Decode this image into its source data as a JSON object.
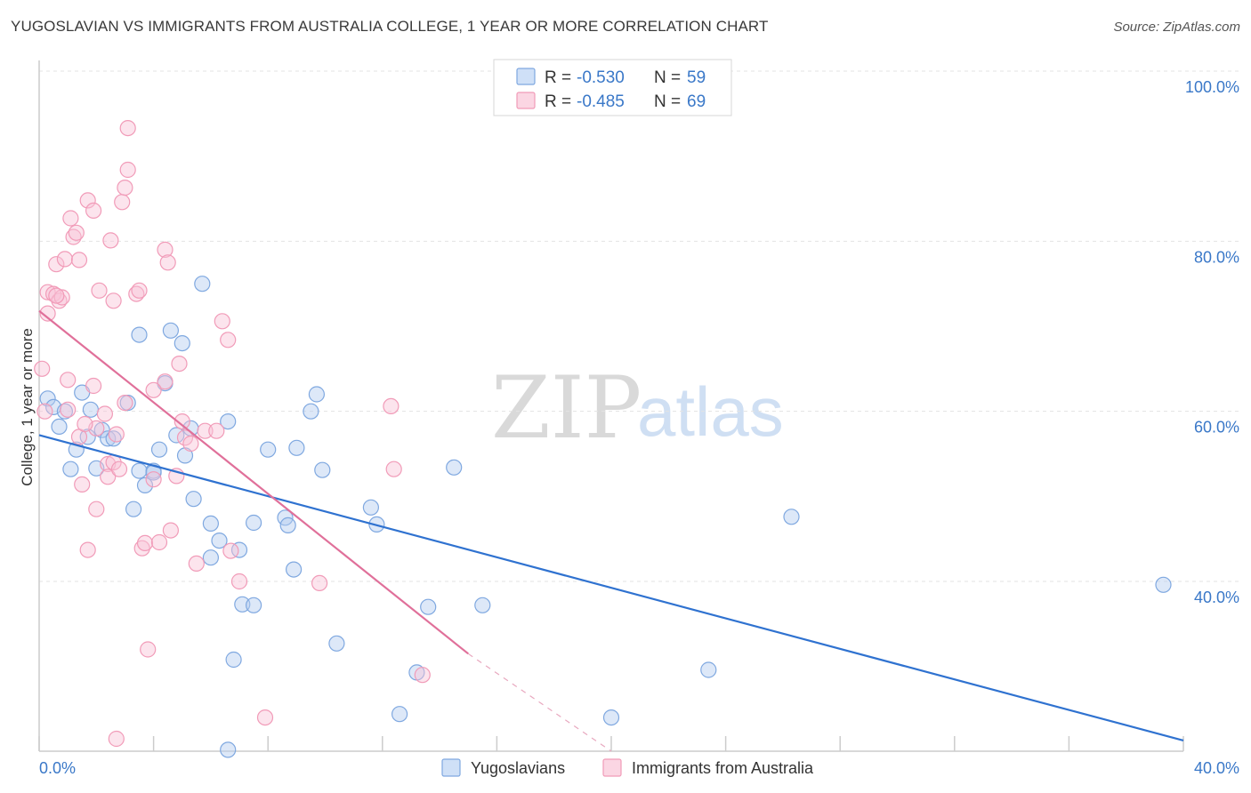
{
  "header": {
    "title": "YUGOSLAVIAN VS IMMIGRANTS FROM AUSTRALIA COLLEGE, 1 YEAR OR MORE CORRELATION CHART",
    "source": "Source: ZipAtlas.com"
  },
  "watermark": {
    "zip": "ZIP",
    "atlas": "atlas"
  },
  "legend_top": {
    "rows": [
      {
        "r_label": "R = ",
        "r_value": "-0.530",
        "n_label": "N = ",
        "n_value": "59",
        "color": "#7fa8e0"
      },
      {
        "r_label": "R = ",
        "r_value": "-0.485",
        "n_label": "N = ",
        "n_value": "69",
        "color": "#f19bb8"
      }
    ]
  },
  "legend_bottom": {
    "items": [
      {
        "label": "Yugoslavians",
        "color": "#7fa8e0"
      },
      {
        "label": "Immigrants from Australia",
        "color": "#f19bb8"
      }
    ]
  },
  "chart_data": {
    "type": "scatter",
    "title": "YUGOSLAVIAN VS IMMIGRANTS FROM AUSTRALIA COLLEGE, 1 YEAR OR MORE CORRELATION CHART",
    "xlabel": "",
    "ylabel": "College, 1 year or more",
    "xlim": [
      0,
      40
    ],
    "ylim": [
      20,
      102
    ],
    "x_tick_labels": [
      "0.0%",
      "40.0%"
    ],
    "y_ticks": [
      40,
      60,
      80,
      100
    ],
    "y_tick_labels": [
      "40.0%",
      "60.0%",
      "80.0%",
      "100.0%"
    ],
    "grid": true,
    "legend": "top-center",
    "series": [
      {
        "name": "Yugoslavians",
        "color": "#7fa8e0",
        "line_color": "#2f72d0",
        "trend": {
          "x0": 0.0,
          "y0": 57.2,
          "x1": 40.0,
          "y1": 21.3
        },
        "points": [
          [
            0.3,
            61.5
          ],
          [
            0.5,
            60.5
          ],
          [
            0.7,
            58.2
          ],
          [
            0.9,
            60.0
          ],
          [
            1.1,
            53.2
          ],
          [
            1.3,
            55.5
          ],
          [
            1.5,
            62.2
          ],
          [
            1.7,
            57.0
          ],
          [
            1.8,
            60.2
          ],
          [
            2.2,
            57.8
          ],
          [
            2.4,
            56.8
          ],
          [
            2.6,
            56.8
          ],
          [
            3.1,
            61.0
          ],
          [
            3.3,
            48.5
          ],
          [
            3.5,
            69.0
          ],
          [
            3.5,
            53.0
          ],
          [
            3.7,
            51.3
          ],
          [
            4.0,
            53.0
          ],
          [
            4.2,
            55.5
          ],
          [
            4.4,
            63.3
          ],
          [
            4.6,
            69.5
          ],
          [
            4.8,
            57.2
          ],
          [
            5.0,
            68.0
          ],
          [
            5.1,
            54.8
          ],
          [
            5.3,
            58.0
          ],
          [
            5.4,
            49.7
          ],
          [
            5.7,
            75.0
          ],
          [
            6.0,
            46.8
          ],
          [
            6.0,
            42.8
          ],
          [
            6.3,
            44.8
          ],
          [
            6.6,
            58.8
          ],
          [
            6.8,
            30.8
          ],
          [
            7.0,
            43.7
          ],
          [
            7.1,
            37.3
          ],
          [
            7.5,
            37.2
          ],
          [
            7.5,
            46.9
          ],
          [
            8.0,
            55.5
          ],
          [
            8.6,
            47.5
          ],
          [
            8.7,
            46.6
          ],
          [
            8.9,
            41.4
          ],
          [
            9.0,
            55.7
          ],
          [
            9.5,
            60.0
          ],
          [
            9.7,
            62.0
          ],
          [
            9.9,
            53.1
          ],
          [
            10.4,
            32.7
          ],
          [
            11.6,
            48.7
          ],
          [
            11.8,
            46.7
          ],
          [
            12.6,
            24.4
          ],
          [
            13.2,
            29.3
          ],
          [
            13.6,
            37.0
          ],
          [
            14.5,
            53.4
          ],
          [
            15.5,
            37.2
          ],
          [
            20.0,
            24.0
          ],
          [
            23.4,
            29.6
          ],
          [
            26.3,
            47.6
          ],
          [
            39.3,
            39.6
          ],
          [
            6.6,
            20.2
          ],
          [
            2.0,
            53.3
          ],
          [
            4.0,
            52.8
          ]
        ]
      },
      {
        "name": "Immigrants from Australia",
        "color": "#f19bb8",
        "line_color": "#e0709a",
        "trend": {
          "x0": 0.0,
          "y0": 71.8,
          "x1": 15.0,
          "y1": 31.5
        },
        "trend_ext": {
          "x0": 15.0,
          "y0": 31.5,
          "x1": 20.0,
          "y1": 18.0
        },
        "points": [
          [
            0.1,
            65.0
          ],
          [
            0.2,
            60.0
          ],
          [
            0.3,
            71.5
          ],
          [
            0.3,
            74.0
          ],
          [
            0.5,
            73.8
          ],
          [
            0.6,
            77.3
          ],
          [
            0.7,
            73.0
          ],
          [
            0.8,
            73.4
          ],
          [
            0.9,
            77.9
          ],
          [
            1.0,
            63.7
          ],
          [
            1.1,
            82.7
          ],
          [
            1.2,
            80.5
          ],
          [
            1.3,
            81.0
          ],
          [
            1.4,
            77.8
          ],
          [
            1.5,
            51.4
          ],
          [
            1.7,
            43.7
          ],
          [
            1.7,
            84.8
          ],
          [
            1.9,
            83.6
          ],
          [
            1.9,
            63.0
          ],
          [
            2.0,
            48.5
          ],
          [
            2.1,
            74.2
          ],
          [
            2.3,
            59.7
          ],
          [
            2.4,
            53.8
          ],
          [
            2.4,
            52.3
          ],
          [
            2.5,
            80.1
          ],
          [
            2.6,
            73.0
          ],
          [
            2.6,
            54.0
          ],
          [
            2.7,
            57.3
          ],
          [
            2.7,
            21.5
          ],
          [
            2.8,
            53.2
          ],
          [
            2.9,
            84.6
          ],
          [
            3.0,
            86.3
          ],
          [
            3.1,
            88.4
          ],
          [
            3.1,
            93.3
          ],
          [
            3.4,
            73.8
          ],
          [
            3.5,
            74.2
          ],
          [
            3.6,
            43.9
          ],
          [
            3.7,
            44.5
          ],
          [
            3.8,
            32.0
          ],
          [
            4.0,
            52.0
          ],
          [
            4.2,
            44.6
          ],
          [
            4.4,
            63.5
          ],
          [
            4.4,
            79.0
          ],
          [
            4.5,
            77.5
          ],
          [
            4.6,
            46.0
          ],
          [
            4.8,
            52.4
          ],
          [
            4.9,
            65.6
          ],
          [
            5.1,
            56.9
          ],
          [
            5.3,
            56.2
          ],
          [
            5.5,
            42.1
          ],
          [
            5.8,
            57.7
          ],
          [
            6.2,
            57.7
          ],
          [
            6.4,
            70.6
          ],
          [
            6.6,
            68.4
          ],
          [
            6.7,
            43.6
          ],
          [
            7.0,
            40.0
          ],
          [
            7.9,
            24.0
          ],
          [
            9.8,
            39.8
          ],
          [
            12.3,
            60.6
          ],
          [
            12.4,
            53.2
          ],
          [
            13.4,
            29.0
          ],
          [
            2.0,
            58.0
          ],
          [
            1.4,
            57.0
          ],
          [
            0.6,
            73.6
          ],
          [
            1.0,
            60.2
          ],
          [
            4.0,
            62.5
          ],
          [
            3.0,
            61.0
          ],
          [
            1.6,
            58.5
          ],
          [
            5.0,
            58.8
          ]
        ]
      }
    ]
  }
}
